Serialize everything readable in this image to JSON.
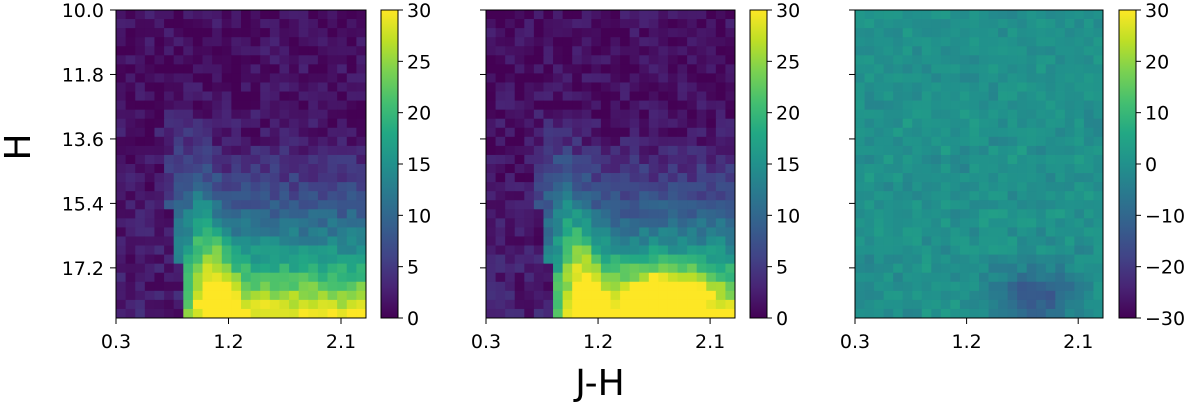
{
  "figure": {
    "ylabel": "H",
    "xlabel": "J-H"
  },
  "chart_data": [
    {
      "type": "heatmap",
      "panel": "left",
      "title": "",
      "xlabel": "",
      "ylabel": "H",
      "xlim": [
        0.3,
        2.3
      ],
      "ylim": [
        10.0,
        18.6
      ],
      "y_inverted": true,
      "x_ticks": [
        "0.3",
        "1.2",
        "2.1"
      ],
      "y_ticks": [
        "10.0",
        "11.8",
        "13.6",
        "15.4",
        "17.2"
      ],
      "colorbar": {
        "min": 0,
        "max": 30,
        "ticks": [
          "0",
          "5",
          "10",
          "15",
          "20",
          "25",
          "30"
        ],
        "colormap": "viridis"
      },
      "grid": false,
      "description_of_values": "number of stars per (J-H, H) bin; counts highest at faint H (16-18.5) for J-H 0.8-2.2, ridge along blue edge from J-H~0.6 at H~13 to J-H~0.9 at H~17"
    },
    {
      "type": "heatmap",
      "panel": "middle",
      "title": "",
      "xlabel": "J-H",
      "ylabel": "",
      "xlim": [
        0.3,
        2.3
      ],
      "ylim": [
        10.0,
        18.6
      ],
      "y_inverted": true,
      "x_ticks": [
        "0.3",
        "1.2",
        "2.1"
      ],
      "y_ticks": [
        "",
        "",
        "",
        "",
        ""
      ],
      "colorbar": {
        "min": 0,
        "max": 30,
        "ticks": [
          "0",
          "5",
          "10",
          "15",
          "20",
          "25",
          "30"
        ],
        "colormap": "viridis"
      },
      "grid": false,
      "description_of_values": "model counts per bin; similar distribution, peak ~30 near J-H 1.6-2.0 at H 17.5-18.5"
    },
    {
      "type": "heatmap",
      "panel": "right",
      "title": "",
      "xlabel": "",
      "ylabel": "",
      "xlim": [
        0.3,
        2.3
      ],
      "ylim": [
        10.0,
        18.6
      ],
      "y_inverted": true,
      "x_ticks": [
        "0.3",
        "1.2",
        "2.1"
      ],
      "y_ticks": [
        "",
        "",
        "",
        "",
        ""
      ],
      "colorbar": {
        "min": -30,
        "max": 30,
        "ticks": [
          "30",
          "20",
          "10",
          "0",
          "−10",
          "−20",
          "−30"
        ],
        "colormap": "viridis"
      },
      "grid": false,
      "description_of_values": "residual (left minus middle); mostly near 0, scatter of ±10 to ±20 in faint region"
    }
  ],
  "colors": {
    "viridis": [
      "#440154",
      "#482475",
      "#414487",
      "#355f8d",
      "#2a788e",
      "#21918c",
      "#22a884",
      "#44bf70",
      "#7ad151",
      "#bddf26",
      "#fde725"
    ]
  }
}
